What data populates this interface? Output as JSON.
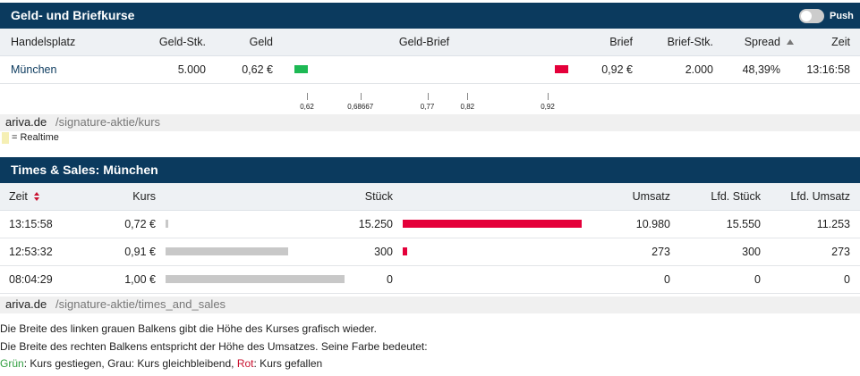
{
  "quotes": {
    "title": "Geld- und Briefkurse",
    "push": "Push",
    "columns": [
      "Handelsplatz",
      "Geld-Stk.",
      "Geld",
      "Geld-Brief",
      "Brief",
      "Brief-Stk.",
      "Spread",
      "Zeit"
    ],
    "rows": [
      {
        "venue": "München",
        "bid_size": "5.000",
        "bid": "0,62 €",
        "ask": "0,92 €",
        "ask_size": "2.000",
        "spread": "48,39%",
        "time": "13:16:58",
        "bid_color": "#1db954",
        "ask_color": "#e4003a"
      }
    ],
    "scale": [
      "0,62",
      "0,68667",
      "0,77",
      "0,82",
      "0,92"
    ],
    "source": {
      "domain": "ariva.de",
      "path": "/signature-aktie/kurs"
    },
    "legend": "= Realtime",
    "legend_color": "#f5efb4"
  },
  "trades": {
    "title": "Times & Sales: München",
    "columns": [
      "Zeit",
      "Kurs",
      "Stück",
      "Umsatz",
      "Lfd. Stück",
      "Lfd. Umsatz"
    ],
    "rows": [
      {
        "time": "13:15:58",
        "price": "0,72 €",
        "volume": "15.250",
        "turnover": "10.980",
        "cum_volume": "15.550",
        "cum_turnover": "11.253",
        "color": "#e4003a"
      },
      {
        "time": "12:53:32",
        "price": "0,91 €",
        "volume": "300",
        "turnover": "273",
        "cum_volume": "300",
        "cum_turnover": "273",
        "color": "#e4003a"
      },
      {
        "time": "08:04:29",
        "price": "1,00 €",
        "volume": "0",
        "turnover": "0",
        "cum_volume": "0",
        "cum_turnover": "0",
        "color": "#c8c8c8"
      }
    ],
    "price_bar_color": "#c8c8c8",
    "source": {
      "domain": "ariva.de",
      "path": "/signature-aktie/times_and_sales"
    },
    "notes": [
      "Die Breite des linken grauen Balkens gibt die Höhe des Kurses grafisch wieder.",
      "Die Breite des rechten Balkens entspricht der Höhe des Umsatzes. Seine Farbe bedeutet:",
      [
        {
          "text": "Grün",
          "color": "#2e9e3e"
        },
        {
          "text": ": Kurs gestiegen, Grau: Kurs gleichbleibend, "
        },
        {
          "text": "Rot",
          "color": "#c8102e"
        },
        {
          "text": ": Kurs gefallen"
        }
      ]
    ]
  }
}
